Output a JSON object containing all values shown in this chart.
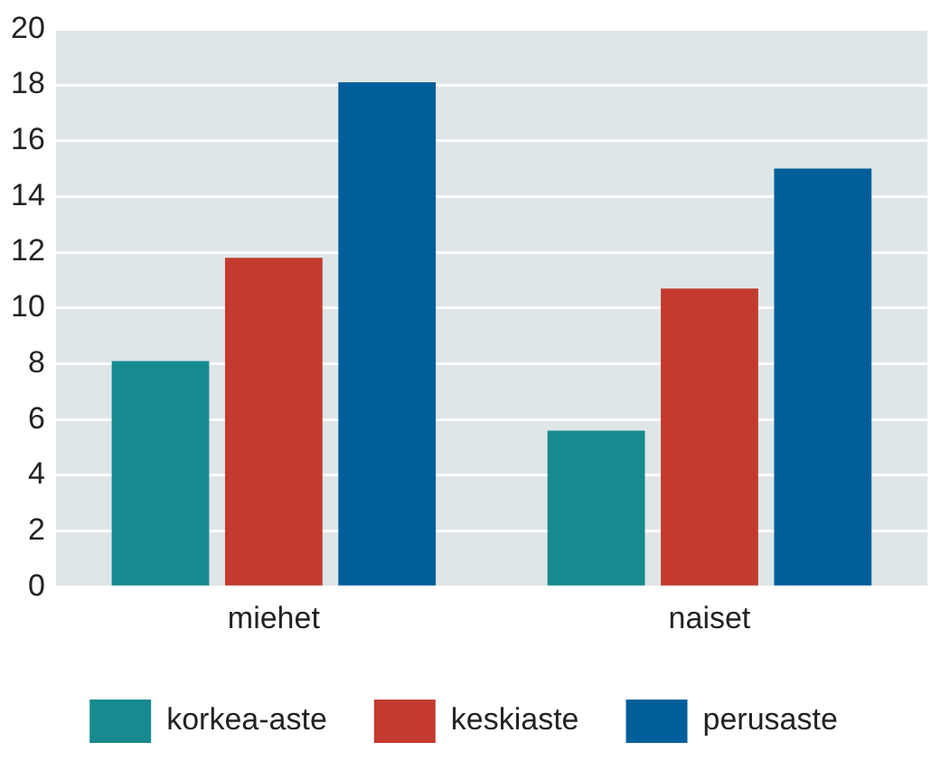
{
  "chart_data": {
    "type": "bar",
    "categories": [
      "miehet",
      "naiset"
    ],
    "series": [
      {
        "name": "korkea-aste",
        "color": "#178a8f",
        "values": [
          8.1,
          5.6
        ]
      },
      {
        "name": "keskiaste",
        "color": "#c23b2e",
        "values": [
          11.8,
          10.7
        ]
      },
      {
        "name": "perusaste",
        "color": "#005f9b",
        "values": [
          18.1,
          15.0
        ]
      }
    ],
    "ylim": [
      0,
      20
    ],
    "yticks": [
      0,
      2,
      4,
      6,
      8,
      10,
      12,
      14,
      16,
      18,
      20
    ],
    "grid": "y",
    "legend": "bottom"
  }
}
